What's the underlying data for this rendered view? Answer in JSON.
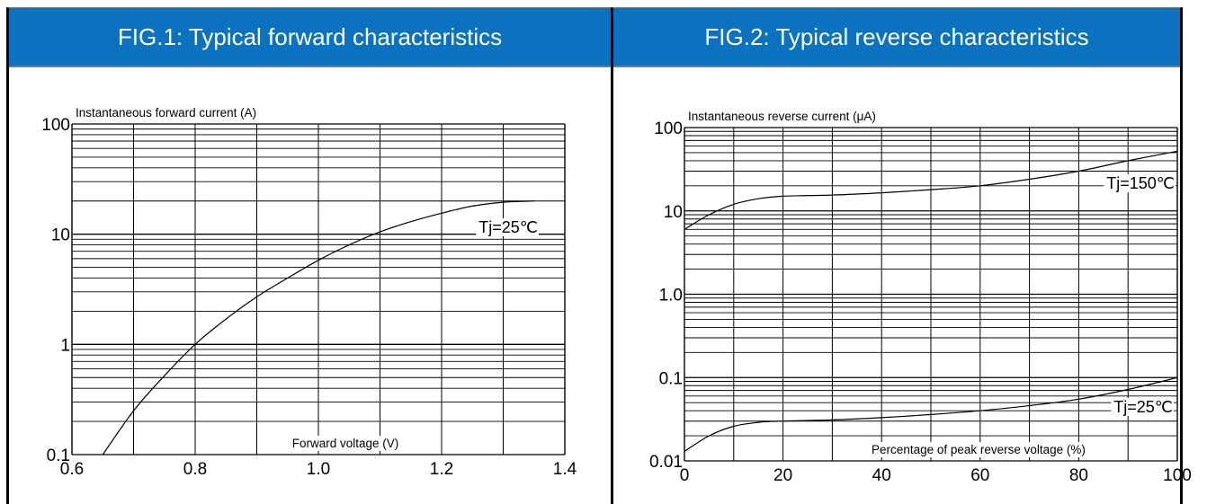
{
  "chart_data": [
    {
      "type": "line",
      "title": "FIG.1: Typical forward characteristics",
      "xlabel": "Forward voltage (V)",
      "ylabel": "Instantaneous forward current (A)",
      "y_scale": "log",
      "xlim": [
        0.6,
        1.4
      ],
      "ylim": [
        0.1,
        100
      ],
      "x_ticks": [
        "0.6",
        "0.8",
        "1.0",
        "1.2",
        "1.4"
      ],
      "y_ticks": [
        "0.1",
        "1",
        "10",
        "100"
      ],
      "grid": true,
      "series": [
        {
          "name": "Tj=25℃",
          "x": [
            0.65,
            0.7,
            0.75,
            0.8,
            0.85,
            0.9,
            0.95,
            1.0,
            1.05,
            1.1,
            1.15,
            1.2,
            1.25,
            1.3,
            1.35
          ],
          "y": [
            0.1,
            0.25,
            0.52,
            1.0,
            1.7,
            2.7,
            4.0,
            5.8,
            8.0,
            10.5,
            13.0,
            15.5,
            18.0,
            19.5,
            20
          ]
        }
      ]
    },
    {
      "type": "line",
      "title": "FIG.2: Typical reverse characteristics",
      "xlabel": "Percentage of peak reverse voltage (%)",
      "ylabel": "Instantaneous reverse current (μA)",
      "y_scale": "log",
      "xlim": [
        0,
        100
      ],
      "ylim": [
        0.01,
        100
      ],
      "x_ticks": [
        "0",
        "20",
        "40",
        "60",
        "80",
        "100"
      ],
      "y_ticks": [
        "0.01",
        "0.1",
        "1.0",
        "10",
        "100"
      ],
      "grid": true,
      "series": [
        {
          "name": "Tj=150℃",
          "x": [
            0,
            5,
            10,
            15,
            20,
            30,
            40,
            50,
            60,
            70,
            80,
            90,
            100
          ],
          "y": [
            6,
            9,
            12,
            14,
            15,
            15.5,
            16.5,
            18,
            20,
            24,
            30,
            40,
            52
          ]
        },
        {
          "name": "Tj=25℃",
          "x": [
            0,
            5,
            10,
            15,
            20,
            30,
            40,
            50,
            60,
            70,
            80,
            90,
            100
          ],
          "y": [
            0.013,
            0.02,
            0.026,
            0.029,
            0.03,
            0.031,
            0.033,
            0.036,
            0.04,
            0.046,
            0.055,
            0.072,
            0.1
          ]
        }
      ]
    }
  ]
}
